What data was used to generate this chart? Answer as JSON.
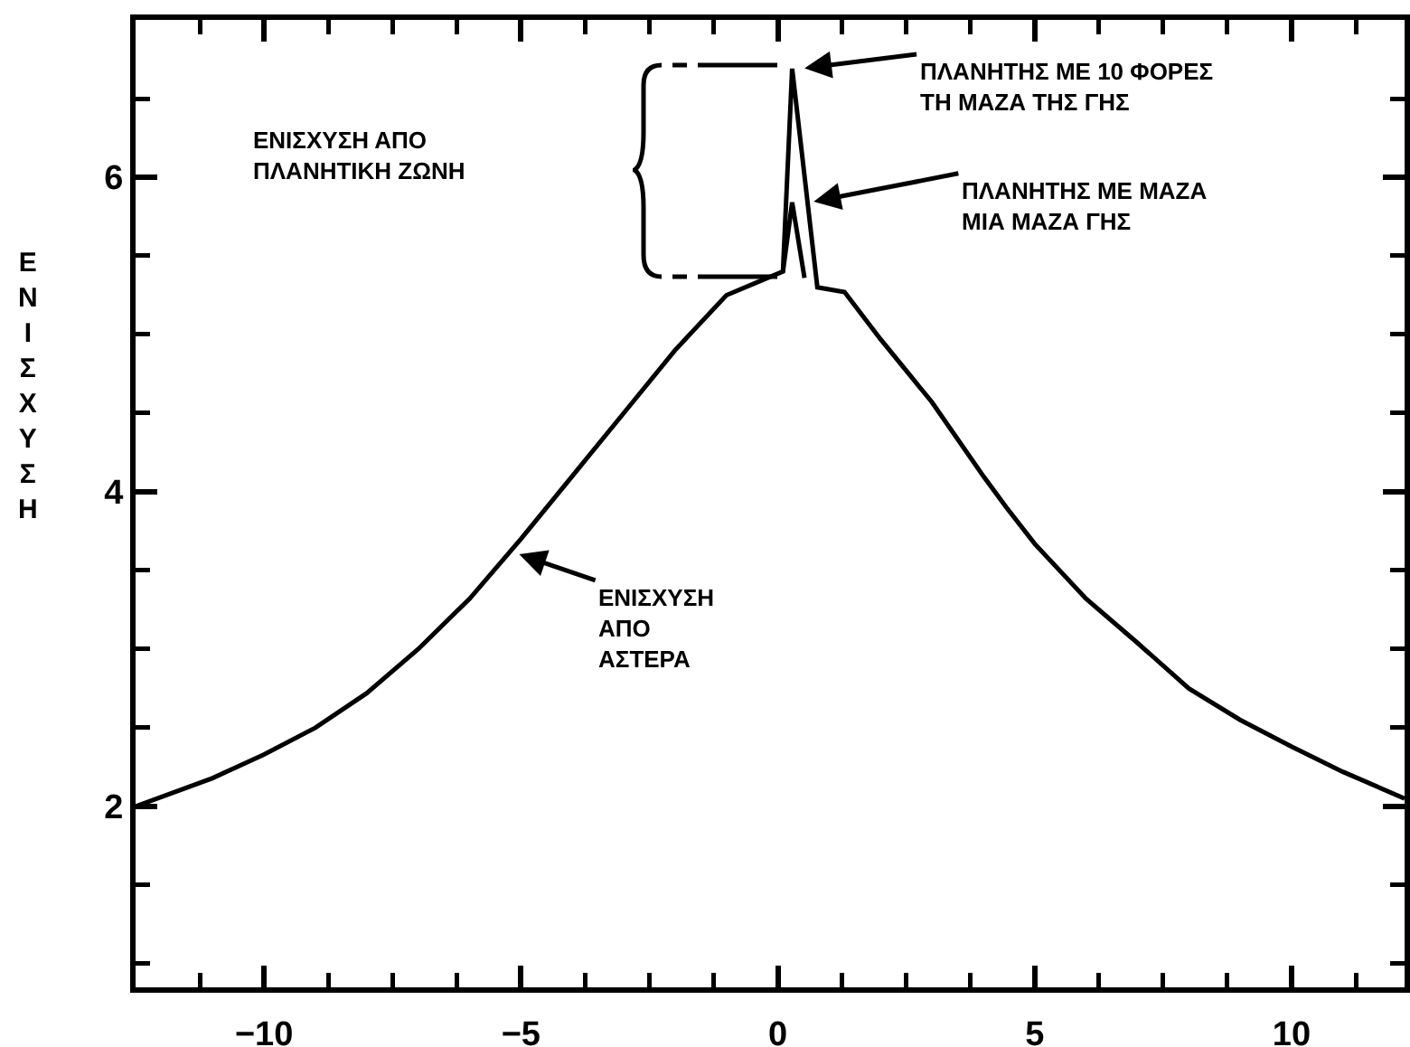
{
  "chart_data": {
    "type": "line",
    "ylabel": "ΕΝΙΣΧΥΣΗ",
    "xlim": [
      -12.5,
      12.2
    ],
    "xticks": [
      {
        "value": -11.25,
        "label": null
      },
      -10,
      {
        "value": -8.75,
        "label": null
      },
      {
        "value": -7.5,
        "label": null
      },
      {
        "value": -6.25,
        "label": null
      },
      -5,
      {
        "value": -3.75,
        "label": null
      },
      {
        "value": -2.5,
        "label": null
      },
      {
        "value": -1.25,
        "label": null
      },
      0,
      {
        "value": 1.25,
        "label": null
      },
      {
        "value": 2.5,
        "label": null
      },
      {
        "value": 3.75,
        "label": null
      },
      5,
      {
        "value": 6.25,
        "label": null
      },
      {
        "value": 7.5,
        "label": null
      },
      {
        "value": 8.75,
        "label": null
      },
      10,
      {
        "value": 11.25,
        "label": null
      }
    ],
    "ylim": [
      0.85,
      7.0
    ],
    "yticks": [
      {
        "value": 1,
        "label": null
      },
      {
        "value": 1.5,
        "label": null
      },
      2,
      {
        "value": 2.5,
        "label": null
      },
      {
        "value": 3,
        "label": null
      },
      {
        "value": 3.5,
        "label": null
      },
      4,
      {
        "value": 4.5,
        "label": null
      },
      {
        "value": 5,
        "label": null
      },
      {
        "value": 5.5,
        "label": null
      },
      6,
      {
        "value": 6.5,
        "label": null
      }
    ],
    "grid": false,
    "marker": "none",
    "line_style": "solid",
    "series": [
      {
        "color": "#000000",
        "x": [
          -12.5,
          -11,
          -10,
          -9,
          -8,
          -7,
          -6,
          -5,
          -4,
          -3,
          -2,
          -1,
          -0.2,
          0.1,
          0.28,
          0.77,
          1.3,
          2,
          3,
          4,
          4.45,
          5,
          6,
          7,
          8,
          9,
          10,
          11,
          12.2
        ],
        "values": [
          2.0,
          2.18,
          2.33,
          2.5,
          2.72,
          3.0,
          3.32,
          3.7,
          4.1,
          4.5,
          4.9,
          5.25,
          5.36,
          5.4,
          6.69,
          5.3,
          5.27,
          4.97,
          4.57,
          4.1,
          3.9,
          3.67,
          3.32,
          3.04,
          2.75,
          2.55,
          2.38,
          2.22,
          2.05
        ]
      },
      {
        "color": "#000000",
        "x": [
          0.1,
          0.28,
          0.52
        ],
        "values": [
          5.4,
          5.84,
          5.36
        ]
      }
    ],
    "annotations": [
      "ΕΝΙΣΧΥΣΗ ΑΠΟ\nΠΛΑΝΗΤΙΚΗ ΖΩΝΗ",
      {
        "text": "ΠΛΑΝΗΤΗΣ ΜΕ 10 ΦΟΡΕΣ\nΤΗ ΜΑΖΑ ΤΗΣ ΓΗΣ",
        "x": 0.45,
        "y": 6.69
      },
      {
        "text": "ΠΛΑΝΗΤΗΣ ΜΕ ΜΑΖΑ\nΜΙΑ ΜΑΖΑ ΓΗΣ",
        "x": 0.63,
        "y": 5.84
      },
      {
        "text": "ΕΝΙΣΧΥΣΗ\nΑΠΟ\nΑΣΤΕΡΑ",
        "x": -5.1,
        "y": 3.61
      }
    ]
  }
}
